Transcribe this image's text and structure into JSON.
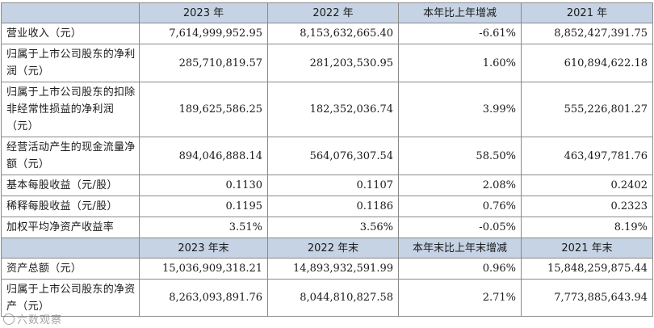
{
  "header1": [
    "2023 年",
    "2022 年",
    "本年比上年增减",
    "2021 年"
  ],
  "rows1": [
    {
      "label": "营业收入（元）",
      "v": [
        "7,614,999,952.95",
        "8,153,632,665.40",
        "-6.61%",
        "8,852,427,391.75"
      ]
    },
    {
      "label": "归属于上市公司股东的净利润（元）",
      "v": [
        "285,710,819.57",
        "281,203,530.95",
        "1.60%",
        "610,894,622.18"
      ]
    },
    {
      "label": "归属于上市公司股东的扣除非经常性损益的净利润（元）",
      "v": [
        "189,625,586.25",
        "182,352,036.74",
        "3.99%",
        "555,226,801.27"
      ]
    },
    {
      "label": "经营活动产生的现金流量净额（元）",
      "v": [
        "894,046,888.14",
        "564,076,307.54",
        "58.50%",
        "463,497,781.76"
      ]
    },
    {
      "label": "基本每股收益（元/股）",
      "v": [
        "0.1130",
        "0.1107",
        "2.08%",
        "0.2402"
      ]
    },
    {
      "label": "稀释每股收益（元/股）",
      "v": [
        "0.1195",
        "0.1186",
        "0.76%",
        "0.2323"
      ]
    },
    {
      "label": "加权平均净资产收益率",
      "v": [
        "3.51%",
        "3.56%",
        "-0.05%",
        "8.19%"
      ]
    }
  ],
  "header2": [
    "2023 年末",
    "2022 年末",
    "本年末比上年末增减",
    "2021 年末"
  ],
  "rows2": [
    {
      "label": "资产总额（元）",
      "v": [
        "15,036,909,318.21",
        "14,893,932,591.99",
        "0.96%",
        "15,848,259,875.44"
      ]
    },
    {
      "label": "归属于上市公司股东的净资产（元）",
      "v": [
        "8,263,093,891.76",
        "8,044,810,827.58",
        "2.71%",
        "7,773,885,643.94"
      ]
    }
  ],
  "watermark": "六数观察"
}
